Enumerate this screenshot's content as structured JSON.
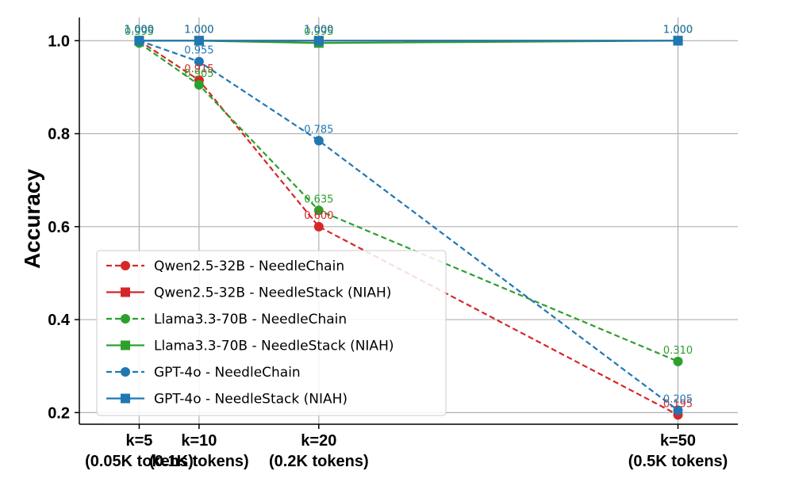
{
  "chart_data": {
    "type": "line",
    "title": "",
    "xlabel": "",
    "ylabel": "Accuracy",
    "categories": [
      [
        "k=5",
        "(0.05K tokens)"
      ],
      [
        "k=10",
        "(0.1K tokens)"
      ],
      [
        "k=20",
        "(0.2K tokens)"
      ],
      [
        "k=50",
        "(0.5K tokens)"
      ]
    ],
    "x": [
      5,
      10,
      20,
      50
    ],
    "xlim": [
      0,
      55
    ],
    "ylim": [
      0.175,
      1.05
    ],
    "yticks": [
      0.2,
      0.4,
      0.6,
      0.8,
      1.0
    ],
    "ytick_labels": [
      "0.2",
      "0.4",
      "0.6",
      "0.8",
      "1.0"
    ],
    "grid": true,
    "legend_position": "lower-left",
    "series": [
      {
        "name": "Qwen2.5-32B - NeedleChain",
        "color": "#d62728",
        "style": "dashed",
        "marker": "circle",
        "values": [
          1.0,
          0.915,
          0.6,
          0.195
        ],
        "labels": [
          "1.000",
          "0.915",
          "0.600",
          "0.195"
        ]
      },
      {
        "name": "Qwen2.5-32B - NeedleStack (NIAH)",
        "color": "#d62728",
        "style": "solid",
        "marker": "square",
        "values": [
          1.0,
          1.0,
          1.0,
          1.0
        ],
        "labels": [
          "1.000",
          "1.000",
          "1.000",
          "1.000"
        ]
      },
      {
        "name": "Llama3.3-70B - NeedleChain",
        "color": "#2ca02c",
        "style": "dashed",
        "marker": "circle",
        "values": [
          0.995,
          0.905,
          0.635,
          0.31
        ],
        "labels": [
          "0.995",
          "0.905",
          "0.635",
          "0.310"
        ]
      },
      {
        "name": "Llama3.3-70B - NeedleStack (NIAH)",
        "color": "#2ca02c",
        "style": "solid",
        "marker": "square",
        "values": [
          1.0,
          1.0,
          0.995,
          1.0
        ],
        "labels": [
          "1.000",
          "1.000",
          "0.995",
          "1.000"
        ]
      },
      {
        "name": "GPT-4o - NeedleChain",
        "color": "#1f77b4",
        "style": "dashed",
        "marker": "circle",
        "values": [
          1.0,
          0.955,
          0.785,
          0.205
        ],
        "labels": [
          "1.000",
          "0.955",
          "0.785",
          "0.205"
        ]
      },
      {
        "name": "GPT-4o - NeedleStack (NIAH)",
        "color": "#1f77b4",
        "style": "solid",
        "marker": "square",
        "values": [
          1.0,
          1.0,
          1.0,
          1.0
        ],
        "labels": [
          "1.000",
          "1.000",
          "1.000",
          "1.000"
        ]
      }
    ]
  }
}
